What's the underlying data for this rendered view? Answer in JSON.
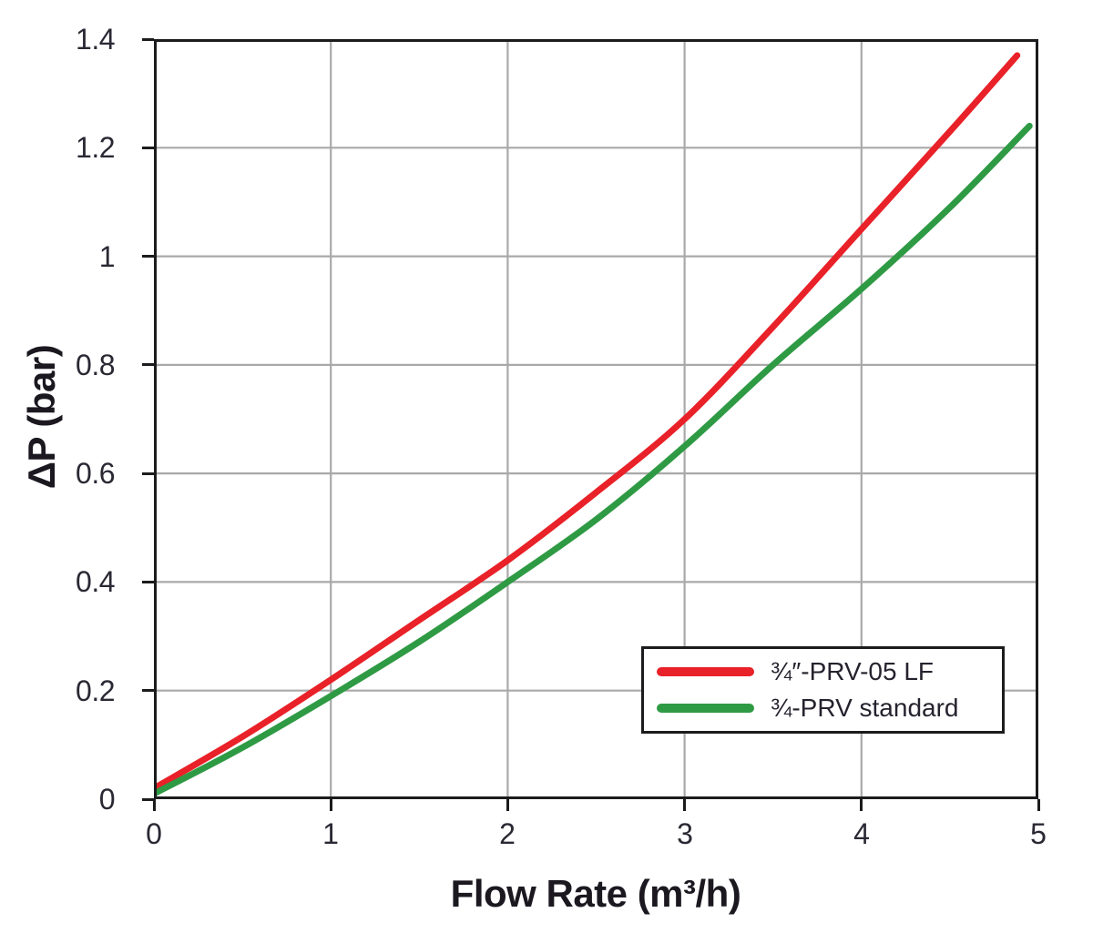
{
  "chart_data": {
    "type": "line",
    "title": "",
    "xlabel": "Flow Rate (m³/h)",
    "ylabel": "ΔP (bar)",
    "xlim": [
      0,
      5
    ],
    "ylim": [
      0,
      1.4
    ],
    "x_ticks": [
      "0",
      "1",
      "2",
      "3",
      "4",
      "5"
    ],
    "x_tick_values": [
      0,
      1,
      2,
      3,
      4,
      5
    ],
    "y_ticks": [
      "1.4",
      "1.2",
      "1",
      "0.8",
      "0.6",
      "0.4",
      "0.2",
      "0"
    ],
    "y_tick_values": [
      1.4,
      1.2,
      1,
      0.8,
      0.6,
      0.4,
      0.2,
      0
    ],
    "grid": true,
    "legend_position": "lower-right",
    "series": [
      {
        "name": "¾″-PRV-05 LF",
        "color": "#e92128",
        "x": [
          0,
          0.5,
          1,
          1.5,
          2,
          2.5,
          3,
          3.5,
          4,
          4.5,
          4.88
        ],
        "y": [
          0.02,
          0.115,
          0.22,
          0.33,
          0.44,
          0.565,
          0.7,
          0.87,
          1.05,
          1.23,
          1.37
        ]
      },
      {
        "name": "¾-PRV standard",
        "color": "#2f9a44",
        "x": [
          0,
          0.5,
          1,
          1.5,
          2,
          2.5,
          3,
          3.5,
          4,
          4.5,
          4.95
        ],
        "y": [
          0.01,
          0.095,
          0.19,
          0.29,
          0.4,
          0.515,
          0.65,
          0.8,
          0.94,
          1.09,
          1.24
        ]
      }
    ],
    "colors": {
      "axis": "#1c1c1e",
      "grid": "#a9a9a9",
      "tick_text": "#2b2834",
      "label_text": "#1b1820",
      "background": "#ffffff"
    }
  }
}
